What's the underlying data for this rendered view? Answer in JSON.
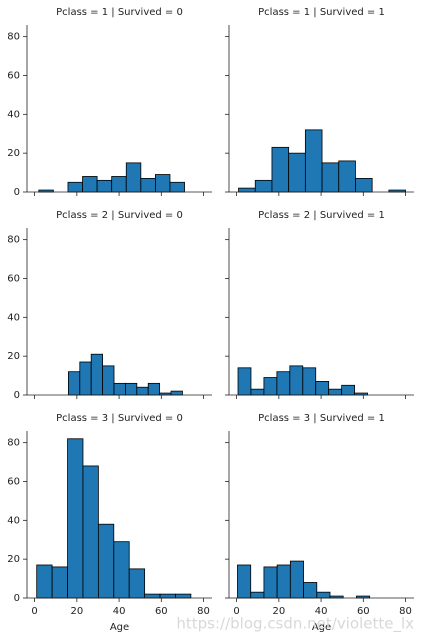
{
  "chart_data": [
    {
      "type": "histogram",
      "title": "Pclass = 1 | Survived = 0",
      "color": "#1f77b4",
      "edgecolor": "#000000",
      "bins": [
        2,
        8.9,
        15.8,
        22.7,
        29.6,
        36.5,
        43.4,
        50.3,
        57.2,
        64.1,
        71
      ],
      "counts": [
        1,
        0,
        5,
        8,
        6,
        8,
        15,
        7,
        9,
        5
      ],
      "xlim": [
        -3.6,
        84
      ],
      "ylim": [
        0,
        86
      ],
      "xticks": [
        0,
        20,
        40,
        60,
        80
      ],
      "yticks": [
        0,
        20,
        40,
        60,
        80
      ]
    },
    {
      "type": "histogram",
      "title": "Pclass = 1 | Survived = 1",
      "color": "#1f77b4",
      "edgecolor": "#000000",
      "bins": [
        0.92,
        8.83,
        16.74,
        24.65,
        32.56,
        40.46,
        48.37,
        56.28,
        64.19,
        72.1,
        80
      ],
      "counts": [
        2,
        6,
        23,
        20,
        32,
        15,
        16,
        7,
        0,
        1
      ],
      "xlim": [
        -3.6,
        84
      ],
      "ylim": [
        0,
        86
      ],
      "xticks": [
        0,
        20,
        40,
        60,
        80
      ],
      "yticks": [
        0,
        20,
        40,
        60,
        80
      ]
    },
    {
      "type": "histogram",
      "title": "Pclass = 2 | Survived = 0",
      "color": "#1f77b4",
      "edgecolor": "#000000",
      "bins": [
        16,
        21.4,
        26.8,
        32.2,
        37.6,
        43,
        48.4,
        53.8,
        59.2,
        64.6,
        70
      ],
      "counts": [
        12,
        17,
        21,
        15,
        6,
        6,
        4,
        6,
        1,
        2
      ],
      "xlim": [
        -3.6,
        84
      ],
      "ylim": [
        0,
        86
      ],
      "xticks": [
        0,
        20,
        40,
        60,
        80
      ],
      "yticks": [
        0,
        20,
        40,
        60,
        80
      ]
    },
    {
      "type": "histogram",
      "title": "Pclass = 2 | Survived = 1",
      "color": "#1f77b4",
      "edgecolor": "#000000",
      "bins": [
        0.67,
        6.8,
        12.93,
        19.07,
        25.2,
        31.34,
        37.47,
        43.6,
        49.74,
        55.87,
        62
      ],
      "counts": [
        14,
        3,
        9,
        12,
        15,
        14,
        7,
        3,
        5,
        1
      ],
      "xlim": [
        -3.6,
        84
      ],
      "ylim": [
        0,
        86
      ],
      "xticks": [
        0,
        20,
        40,
        60,
        80
      ],
      "yticks": [
        0,
        20,
        40,
        60,
        80
      ]
    },
    {
      "type": "histogram",
      "title": "Pclass = 3 | Survived = 0",
      "color": "#1f77b4",
      "edgecolor": "#000000",
      "bins": [
        1,
        8.3,
        15.6,
        22.9,
        30.2,
        37.5,
        44.8,
        52.1,
        59.4,
        66.7,
        74
      ],
      "counts": [
        17,
        16,
        82,
        68,
        38,
        29,
        15,
        2,
        2,
        2
      ],
      "xlim": [
        -3.6,
        84
      ],
      "ylim": [
        0,
        86
      ],
      "xticks": [
        0,
        20,
        40,
        60,
        80
      ],
      "yticks": [
        0,
        20,
        40,
        60,
        80
      ],
      "xlabel": "Age"
    },
    {
      "type": "histogram",
      "title": "Pclass = 3 | Survived = 1",
      "color": "#1f77b4",
      "edgecolor": "#000000",
      "bins": [
        0.42,
        6.68,
        12.94,
        19.19,
        25.45,
        31.71,
        37.97,
        44.23,
        50.48,
        56.74,
        63
      ],
      "counts": [
        17,
        3,
        16,
        17,
        19,
        8,
        3,
        1,
        0,
        1
      ],
      "xlim": [
        -3.6,
        84
      ],
      "ylim": [
        0,
        86
      ],
      "xticks": [
        0,
        20,
        40,
        60,
        80
      ],
      "yticks": [
        0,
        20,
        40,
        60,
        80
      ],
      "xlabel": "Age"
    }
  ],
  "watermark": "https://blog.csdn.net/violette_lx"
}
